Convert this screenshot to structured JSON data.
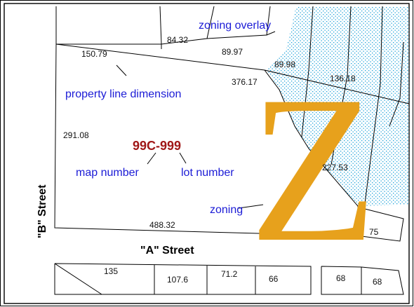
{
  "colors": {
    "callout": "#1b1bd6",
    "map_number": "#a01818",
    "zoning_letter": "#e7a11c",
    "overlay_dots": "#1aa0d8",
    "overlay_fill": "#e9f7fd",
    "lines": "#000000"
  },
  "streets": {
    "a_street": "\"A\" Street",
    "b_street": "\"B\" Street"
  },
  "callouts": {
    "zoning_overlay": "zoning overlay",
    "property_line_dimension": "property line dimension",
    "map_number": "map number",
    "lot_number": "lot number",
    "zoning": "zoning"
  },
  "map_number_label": "99C-999",
  "zoning_letter": "Z",
  "dimensions": {
    "d150": "150.79",
    "d84": "84.32",
    "d89_97": "89.97",
    "d89_98": "89.98",
    "d136": "136.18",
    "d376": "376.17",
    "d291": "291.08",
    "d227": "227.53",
    "d488": "488.32",
    "d75": "75",
    "d135": "135",
    "d107": "107.6",
    "d71": "71.2",
    "d66": "66",
    "d68a": "68",
    "d68b": "68"
  }
}
